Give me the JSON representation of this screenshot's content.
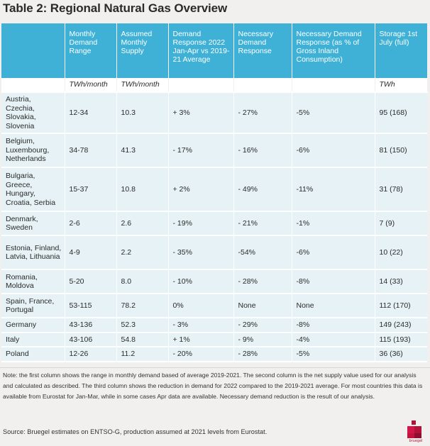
{
  "title": "Table 2: Regional Natural Gas Overview",
  "colors": {
    "header_bg": "#3fb1d6",
    "row_bg": "#e6f2f5",
    "brand": "#b0123a"
  },
  "table": {
    "headers": [
      "",
      "Monthly Demand Range",
      "Assumed Monthly Supply",
      "Demand Response 2022 Jan-Apr vs 2019-21 Average",
      "Necessary Demand Response",
      "Necessary Demand Response (as % of Gross Inland Consumption)",
      "Storage 1st July (full)"
    ],
    "units": [
      "",
      "TWh/month",
      "TWh/month",
      "",
      "",
      "",
      "TWh"
    ],
    "rows": [
      [
        "Austria, Czechia, Slovakia, Slovenia",
        "12-34",
        "10.3",
        "+ 3%",
        "- 27%",
        "-5%",
        "95 (168)"
      ],
      [
        "Belgium, Luxembourg, Netherlands",
        "34-78",
        "41.3",
        "- 17%",
        "- 16%",
        "-6%",
        "81 (150)"
      ],
      [
        "Bulgaria, Greece, Hungary, Croatia, Serbia",
        "15-37",
        "10.8",
        "+ 2%",
        "- 49%",
        "-11%",
        "31 (78)"
      ],
      [
        "Denmark, Sweden",
        "2-6",
        "2.6",
        "- 19%",
        "- 21%",
        "-1%",
        "7 (9)"
      ],
      [
        "Estonia, Finland, Latvia, Lithuania",
        "4-9",
        "2.2",
        "- 35%",
        "-54%",
        "-6%",
        "10 (22)"
      ],
      [
        "Romania, Moldova",
        "5-20",
        "8.0",
        "- 10%",
        "- 28%",
        "-8%",
        "14 (33)"
      ],
      [
        "Spain, France, Portugal",
        "53-115",
        "78.2",
        "0%",
        "None",
        "None",
        "112 (170)"
      ],
      [
        "Germany",
        "43-136",
        "52.3",
        "- 3%",
        "- 29%",
        "-8%",
        "149 (243)"
      ],
      [
        "Italy",
        "43-106",
        "54.8",
        "+ 1%",
        "- 9%",
        "-4%",
        "115 (193)"
      ],
      [
        "Poland",
        "12-26",
        "11.2",
        "- 20%",
        "- 28%",
        "-5%",
        "36 (36)"
      ]
    ]
  },
  "note": "Note: the first column shows the range in monthly demand based of average 2019-2021. The second column is the net supply value used for our analysis and calculated as described. The third column shows the reduction in demand for 2022 compared to the 2019-2021 average. For most countries this data is available from Eurostat for Jan-Mar, while in some cases Apr data are available. Necessary demand reduction is the result of our analysis.",
  "source": "Source: Bruegel estimates on ENTSO-G, production assumed at 2021 levels from Eurostat.",
  "logo": {
    "icon": "bruegel-logo-icon",
    "text": "bruegel"
  }
}
